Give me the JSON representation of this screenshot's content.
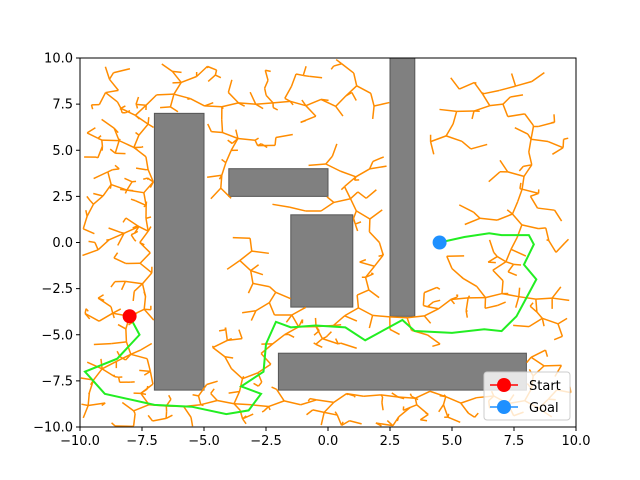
{
  "chart_data": {
    "type": "scatter",
    "title": "",
    "xlabel": "",
    "ylabel": "",
    "xlim": [
      -10,
      10
    ],
    "ylim": [
      -10,
      10
    ],
    "xticks": [
      -10.0,
      -7.5,
      -5.0,
      -2.5,
      0.0,
      2.5,
      5.0,
      7.5,
      10.0
    ],
    "yticks": [
      -10.0,
      -7.5,
      -5.0,
      -2.5,
      0.0,
      2.5,
      5.0,
      7.5,
      10.0
    ],
    "xtick_labels": [
      "−10.0",
      "−7.5",
      "−5.0",
      "−2.5",
      "0.0",
      "2.5",
      "5.0",
      "7.5",
      "10.0"
    ],
    "ytick_labels": [
      "−10.0",
      "−7.5",
      "−5.0",
      "−2.5",
      "0.0",
      "2.5",
      "5.0",
      "7.5",
      "10.0"
    ],
    "grid": false,
    "legend_position": "lower-right",
    "obstacles": [
      {
        "x": -7,
        "y": -8,
        "w": 2,
        "h": 15
      },
      {
        "x": -4,
        "y": 2.5,
        "w": 4,
        "h": 1.5
      },
      {
        "x": -1.5,
        "y": -3.5,
        "w": 2.5,
        "h": 5
      },
      {
        "x": 2.5,
        "y": -4,
        "w": 1,
        "h": 14
      },
      {
        "x": -2,
        "y": -8,
        "w": 10,
        "h": 2
      }
    ],
    "obstacle_color": "#808080",
    "tree_color": "#ff8c00",
    "tree_edge_count": 700,
    "path_color": "#22ee22",
    "path": [
      [
        -8,
        -4
      ],
      [
        -7.6,
        -5
      ],
      [
        -8.5,
        -6.3
      ],
      [
        -9.8,
        -7
      ],
      [
        -9,
        -8.2
      ],
      [
        -7,
        -8.8
      ],
      [
        -5.5,
        -8.9
      ],
      [
        -4.1,
        -9.3
      ],
      [
        -3.2,
        -9.1
      ],
      [
        -2.7,
        -8.2
      ],
      [
        -3.5,
        -7.8
      ],
      [
        -2.6,
        -7
      ],
      [
        -2.5,
        -5.5
      ],
      [
        -2.1,
        -4.3
      ],
      [
        -1.5,
        -4.6
      ],
      [
        -0.5,
        -4.5
      ],
      [
        0.7,
        -4.6
      ],
      [
        1.5,
        -5.3
      ],
      [
        3,
        -4.2
      ],
      [
        3.5,
        -4.8
      ],
      [
        5,
        -4.9
      ],
      [
        6.3,
        -4.7
      ],
      [
        7,
        -4.8
      ],
      [
        7.6,
        -4
      ],
      [
        8,
        -3
      ],
      [
        8.4,
        -2
      ],
      [
        7.9,
        -1.2
      ],
      [
        8.3,
        -0.1
      ],
      [
        8.1,
        0.4
      ],
      [
        7,
        0.4
      ],
      [
        6.5,
        0.5
      ],
      [
        5.5,
        0.3
      ],
      [
        4.5,
        0
      ]
    ],
    "series": [
      {
        "name": "Start",
        "x": -8,
        "y": -4,
        "color": "#ff0000"
      },
      {
        "name": "Goal",
        "x": 4.5,
        "y": 0,
        "color": "#1e90ff"
      }
    ]
  }
}
